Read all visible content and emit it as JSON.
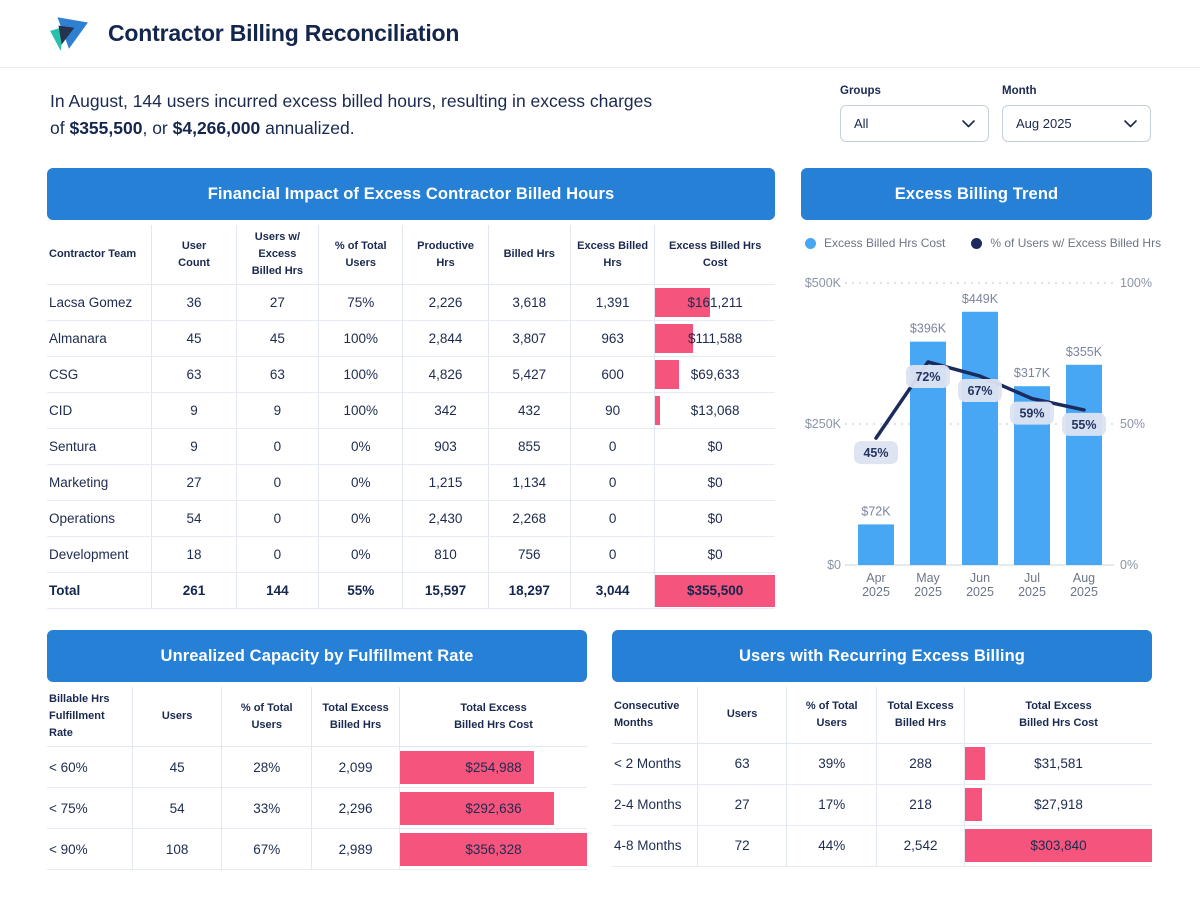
{
  "header": {
    "title": "Contractor Billing Reconciliation"
  },
  "summary": {
    "line1": "In August, 144 users incurred excess billed hours, resulting in excess charges",
    "line2_pre": "of ",
    "amount1": "$355,500",
    "mid": ", or ",
    "amount2": "$4,266,000",
    "suffix": " annualized."
  },
  "filters": {
    "groups": {
      "label": "Groups",
      "value": "All"
    },
    "month": {
      "label": "Month",
      "value": "Aug 2025"
    }
  },
  "colors": {
    "banner_blue": "#2680d6",
    "bar_blue": "#47a7f5",
    "pink": "#f5547d",
    "navy_line": "#1b2b5e",
    "pill_bg": "#dde3f2"
  },
  "financial_table": {
    "title": "Financial Impact of Excess Contractor Billed Hours",
    "columns": [
      "Contractor Team",
      "User\nCount",
      "Users w/ Excess\nBilled Hrs",
      "% of Total\nUsers",
      "Productive Hrs",
      "Billed Hrs",
      "Excess Billed\nHrs",
      "Excess Billed Hrs Cost"
    ],
    "col_widths": [
      "14.4%",
      "11.6%",
      "11.3%",
      "11.6%",
      "11.7%",
      "11.3%",
      "11.6%",
      "16.5%"
    ],
    "bar_max": 355500,
    "rows": [
      {
        "cells": [
          "Lacsa Gomez",
          "36",
          "27",
          "75%",
          "2,226",
          "3,618",
          "1,391",
          "$161,211"
        ],
        "bar": 161211
      },
      {
        "cells": [
          "Almanara",
          "45",
          "45",
          "100%",
          "2,844",
          "3,807",
          "963",
          "$111,588"
        ],
        "bar": 111588
      },
      {
        "cells": [
          "CSG",
          "63",
          "63",
          "100%",
          "4,826",
          "5,427",
          "600",
          "$69,633"
        ],
        "bar": 69633
      },
      {
        "cells": [
          "CID",
          "9",
          "9",
          "100%",
          "342",
          "432",
          "90",
          "$13,068"
        ],
        "bar": 13068
      },
      {
        "cells": [
          "Sentura",
          "9",
          "0",
          "0%",
          "903",
          "855",
          "0",
          "$0"
        ],
        "bar": 0
      },
      {
        "cells": [
          "Marketing",
          "27",
          "0",
          "0%",
          "1,215",
          "1,134",
          "0",
          "$0"
        ],
        "bar": 0
      },
      {
        "cells": [
          "Operations",
          "54",
          "0",
          "0%",
          "2,430",
          "2,268",
          "0",
          "$0"
        ],
        "bar": 0
      },
      {
        "cells": [
          "Development",
          "18",
          "0",
          "0%",
          "810",
          "756",
          "0",
          "$0"
        ],
        "bar": 0
      },
      {
        "cells": [
          "Total",
          "261",
          "144",
          "55%",
          "15,597",
          "18,297",
          "3,044",
          "$355,500"
        ],
        "bar": 355500,
        "total": true
      }
    ]
  },
  "capacity_table": {
    "title": "Unrealized Capacity by Fulfillment Rate",
    "columns": [
      "Billable Hrs\nFulfillment Rate",
      "Users",
      "% of Total\nUsers",
      "Total Excess\nBilled Hrs",
      "Total Excess\nBilled Hrs Cost"
    ],
    "col_widths": [
      "15.8%",
      "16.6%",
      "16.6%",
      "16.3%",
      "34.7%"
    ],
    "bar_max": 356328,
    "rows": [
      {
        "cells": [
          "< 60%",
          "45",
          "28%",
          "2,099",
          "$254,988"
        ],
        "bar": 254988
      },
      {
        "cells": [
          "< 75%",
          "54",
          "33%",
          "2,296",
          "$292,636"
        ],
        "bar": 292636
      },
      {
        "cells": [
          "< 90%",
          "108",
          "67%",
          "2,989",
          "$356,328"
        ],
        "bar": 356328
      }
    ]
  },
  "recurring_table": {
    "title": "Users with Recurring Excess Billing",
    "columns": [
      "Consecutive\nMonths",
      "Users",
      "% of Total\nUsers",
      "Total Excess\nBilled Hrs",
      "Total Excess\nBilled Hrs Cost"
    ],
    "col_widths": [
      "15.8%",
      "16.6%",
      "16.6%",
      "16.3%",
      "34.7%"
    ],
    "bar_max": 303840,
    "rows": [
      {
        "cells": [
          "< 2 Months",
          "63",
          "39%",
          "288",
          "$31,581"
        ],
        "bar": 31581
      },
      {
        "cells": [
          "2-4 Months",
          "27",
          "17%",
          "218",
          "$27,918"
        ],
        "bar": 27918
      },
      {
        "cells": [
          "4-8 Months",
          "72",
          "44%",
          "2,542",
          "$303,840"
        ],
        "bar": 303840
      }
    ]
  },
  "chart_data": {
    "type": "bar",
    "title": "Excess Billing Trend",
    "categories": [
      "Apr 2025",
      "May 2025",
      "Jun 2025",
      "Jul 2025",
      "Aug 2025"
    ],
    "series": [
      {
        "name": "Excess Billed Hrs Cost",
        "type": "bar",
        "axis": "left",
        "values": [
          72000,
          396000,
          449000,
          317000,
          355000
        ],
        "labels": [
          "$72K",
          "$396K",
          "$449K",
          "$317K",
          "$355K"
        ],
        "color": "#47a7f5"
      },
      {
        "name": "% of Users w/ Excess Billed Hrs",
        "type": "line",
        "axis": "right",
        "values": [
          45,
          72,
          67,
          59,
          55
        ],
        "labels": [
          "45%",
          "72%",
          "67%",
          "59%",
          "55%"
        ],
        "color": "#1b2b5e"
      }
    ],
    "left_axis": {
      "ticks": [
        "$500K",
        "$250K",
        "$0"
      ],
      "min": 0,
      "max": 500000
    },
    "right_axis": {
      "ticks": [
        "100%",
        "50%",
        "0%"
      ],
      "min": 0,
      "max": 100
    },
    "grid": "horizontal-dashed",
    "legend_position": "top"
  }
}
